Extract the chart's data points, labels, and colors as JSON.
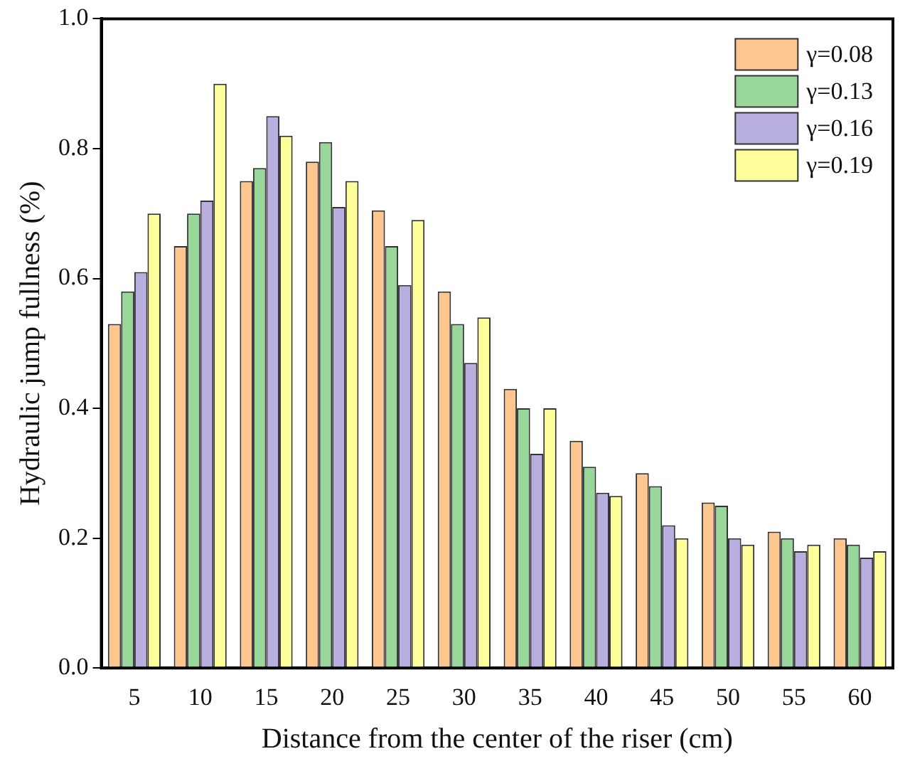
{
  "chart_data": {
    "type": "bar",
    "xlabel": "Distance from the center of the riser (cm)",
    "ylabel": "Hydraulic jump fullness (%)",
    "categories": [
      "5",
      "10",
      "15",
      "20",
      "25",
      "30",
      "35",
      "40",
      "45",
      "50",
      "55",
      "60"
    ],
    "series": [
      {
        "name": "γ=0.08",
        "color": "#fdc68f",
        "values": [
          0.53,
          0.65,
          0.75,
          0.78,
          0.705,
          0.58,
          0.43,
          0.35,
          0.3,
          0.255,
          0.21,
          0.2
        ]
      },
      {
        "name": "γ=0.13",
        "color": "#98d69a",
        "values": [
          0.58,
          0.7,
          0.77,
          0.81,
          0.65,
          0.53,
          0.4,
          0.31,
          0.28,
          0.25,
          0.2,
          0.19
        ]
      },
      {
        "name": "γ=0.16",
        "color": "#b8aee0",
        "values": [
          0.61,
          0.72,
          0.85,
          0.71,
          0.59,
          0.47,
          0.33,
          0.27,
          0.22,
          0.2,
          0.18,
          0.17
        ]
      },
      {
        "name": "γ=0.19",
        "color": "#fdfd9a",
        "values": [
          0.7,
          0.9,
          0.82,
          0.75,
          0.69,
          0.54,
          0.4,
          0.265,
          0.2,
          0.19,
          0.19,
          0.18
        ]
      }
    ],
    "ylim": [
      0,
      1.0
    ],
    "yticks": [
      {
        "value": 0,
        "label": "0.0"
      },
      {
        "value": 0.2,
        "label": "0.2"
      },
      {
        "value": 0.4,
        "label": "0.4"
      },
      {
        "value": 0.6,
        "label": "0.6"
      },
      {
        "value": 0.8,
        "label": "0.8"
      },
      {
        "value": 1.0,
        "label": "1.0"
      }
    ],
    "grid": false,
    "legend": "top right"
  }
}
